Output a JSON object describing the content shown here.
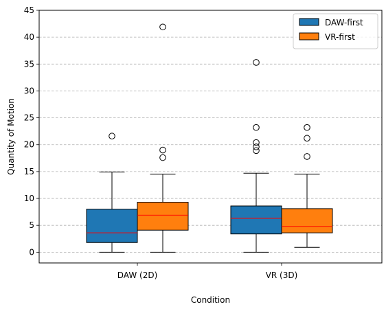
{
  "chart_data": {
    "type": "boxplot",
    "xlabel": "Condition",
    "ylabel": "Quantity of Motion",
    "ylim": [
      -2,
      45
    ],
    "yticks": [
      0,
      5,
      10,
      15,
      20,
      25,
      30,
      35,
      40,
      45
    ],
    "categories": [
      "DAW (2D)",
      "VR (3D)"
    ],
    "grid": {
      "y": true,
      "style": "dashed"
    },
    "legend_position": "top-right",
    "median_color": "#ff0000",
    "series": [
      {
        "name": "DAW-first",
        "color": "#1f77b4",
        "boxes": [
          {
            "min": 0,
            "q1": 1.8,
            "median": 3.6,
            "q3": 8.0,
            "max": 14.9,
            "outliers": [
              21.6
            ]
          },
          {
            "min": 0,
            "q1": 3.4,
            "median": 6.3,
            "q3": 8.6,
            "max": 14.7,
            "outliers": [
              18.9,
              19.6,
              20.4,
              23.2,
              35.3
            ]
          }
        ]
      },
      {
        "name": "VR-first",
        "color": "#ff7f0e",
        "boxes": [
          {
            "min": 0,
            "q1": 4.1,
            "median": 6.9,
            "q3": 9.3,
            "max": 14.5,
            "outliers": [
              17.6,
              19.0,
              41.9
            ]
          },
          {
            "min": 0.9,
            "q1": 3.6,
            "median": 4.8,
            "q3": 8.1,
            "max": 14.5,
            "outliers": [
              17.8,
              21.2,
              23.2
            ]
          }
        ]
      }
    ]
  }
}
